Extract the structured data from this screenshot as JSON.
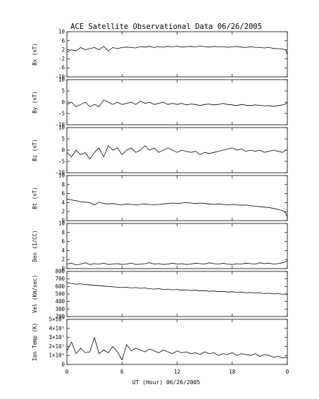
{
  "chart_data": {
    "type": "line",
    "title": "ACE Satellite Observational Data   06/26/2005",
    "xlabel": "UT (Hour)   06/26/2005",
    "x_ticks": [
      "0",
      "6",
      "12",
      "18",
      "0"
    ],
    "xlim": [
      0,
      24
    ],
    "panels": [
      {
        "key": "bx",
        "ylabel": "Bx (nT)",
        "ylim": [
          -10,
          10
        ],
        "y_ticks": [
          {
            "v": 10,
            "t": "10"
          },
          {
            "v": 6,
            "t": "6"
          },
          {
            "v": 2,
            "t": "2"
          },
          {
            "v": -2,
            "t": "-2"
          },
          {
            "v": -6,
            "t": "-6"
          },
          {
            "v": -10,
            "t": "-10"
          }
        ],
        "series": [
          {
            "x": [
              0,
              0.5,
              1,
              1.5,
              2,
              2.5,
              3,
              3.5,
              4,
              4.5,
              5,
              5.5,
              6,
              6.5,
              7,
              7.5,
              8,
              8.5,
              9,
              9.5,
              10,
              10.5,
              11,
              11.5,
              12,
              12.5,
              13,
              13.5,
              14,
              14.5,
              15,
              15.5,
              16,
              16.5,
              17,
              17.5,
              18,
              18.5,
              19,
              19.5,
              20,
              20.5,
              21,
              21.5,
              22,
              22.5,
              23,
              23.5,
              23.8,
              24
            ],
            "y": [
              1,
              2,
              1.5,
              3,
              2,
              2.5,
              3,
              2,
              3.5,
              1.5,
              3,
              2.5,
              3,
              3.2,
              3,
              2.8,
              3.4,
              3.2,
              3.5,
              3,
              3.4,
              3.1,
              3.5,
              3.3,
              3.6,
              3.2,
              3.4,
              3.5,
              3.3,
              3.6,
              3.4,
              3.2,
              3.5,
              3.3,
              3.4,
              3.1,
              3.3,
              3.5,
              3.2,
              3,
              3.3,
              3.1,
              3,
              2.8,
              3,
              2.6,
              2.5,
              2.3,
              2,
              0
            ]
          }
        ]
      },
      {
        "key": "by",
        "ylabel": "By (nT)",
        "ylim": [
          -10,
          10
        ],
        "y_ticks": [
          {
            "v": 10,
            "t": "10"
          },
          {
            "v": 5,
            "t": "5"
          },
          {
            "v": 0,
            "t": "0"
          },
          {
            "v": -5,
            "t": "-5"
          },
          {
            "v": -10,
            "t": "-10"
          }
        ],
        "series": [
          {
            "x": [
              0,
              0.5,
              1,
              1.5,
              2,
              2.5,
              3,
              3.5,
              4,
              4.5,
              5,
              5.5,
              6,
              6.5,
              7,
              7.5,
              8,
              8.5,
              9,
              9.5,
              10,
              10.5,
              11,
              11.5,
              12,
              12.5,
              13,
              13.5,
              14,
              14.5,
              15,
              15.5,
              16,
              16.5,
              17,
              17.5,
              18,
              18.5,
              19,
              19.5,
              20,
              20.5,
              21,
              21.5,
              22,
              22.5,
              23,
              23.5,
              23.8,
              24
            ],
            "y": [
              -1,
              0,
              -2,
              -1,
              0,
              -2,
              -1,
              -2,
              1,
              0,
              -1,
              0,
              -1,
              -0.5,
              0,
              -1,
              0.5,
              -0.5,
              0,
              -1,
              -0.5,
              0,
              -1,
              -0.5,
              -1,
              -0.5,
              -1.2,
              -0.8,
              -1,
              -1.5,
              -1,
              -0.8,
              -1.2,
              -1,
              -0.5,
              -1,
              -1.2,
              -1.5,
              -1,
              -1.3,
              -1.5,
              -1.2,
              -1.4,
              -1.6,
              -1.5,
              -1.8,
              -1.5,
              -1.2,
              -0.8,
              -0.2
            ]
          }
        ]
      },
      {
        "key": "bz",
        "ylabel": "Bz (nT)",
        "ylim": [
          -10,
          10
        ],
        "y_ticks": [
          {
            "v": 10,
            "t": "10"
          },
          {
            "v": 5,
            "t": "5"
          },
          {
            "v": 0,
            "t": "0"
          },
          {
            "v": -5,
            "t": "-5"
          },
          {
            "v": -10,
            "t": "-10"
          }
        ],
        "series": [
          {
            "x": [
              0,
              0.5,
              1,
              1.5,
              2,
              2.5,
              3,
              3.5,
              4,
              4.5,
              5,
              5.5,
              6,
              6.5,
              7,
              7.5,
              8,
              8.5,
              9,
              9.5,
              10,
              10.5,
              11,
              11.5,
              12,
              12.5,
              13,
              13.5,
              14,
              14.5,
              15,
              15.5,
              16,
              16.5,
              17,
              17.5,
              18,
              18.5,
              19,
              19.5,
              20,
              20.5,
              21,
              21.5,
              22,
              22.5,
              23,
              23.5,
              23.8,
              24
            ],
            "y": [
              -1,
              -3,
              0,
              -2,
              -1,
              -4,
              -1,
              1,
              -3,
              2,
              0,
              1,
              -2,
              0,
              1,
              -1,
              0,
              2,
              0,
              1,
              -1,
              0,
              1,
              0,
              -1,
              0,
              -0.5,
              -1,
              -0.5,
              -2,
              -1,
              -1.5,
              -1,
              -0.5,
              0,
              0.5,
              1,
              0,
              0.5,
              -0.5,
              0,
              -0.5,
              0,
              -1,
              -0.5,
              0,
              -0.5,
              -1,
              0,
              0
            ]
          }
        ]
      },
      {
        "key": "bt",
        "ylabel": "Bt (nT)",
        "ylim": [
          0,
          10
        ],
        "y_ticks": [
          {
            "v": 10,
            "t": "10"
          },
          {
            "v": 8,
            "t": "8"
          },
          {
            "v": 6,
            "t": "6"
          },
          {
            "v": 4,
            "t": "4"
          },
          {
            "v": 2,
            "t": "2"
          },
          {
            "v": 0,
            "t": "0"
          }
        ],
        "series": [
          {
            "x": [
              0,
              0.5,
              1,
              1.5,
              2,
              2.5,
              3,
              3.5,
              4,
              4.5,
              5,
              5.5,
              6,
              6.5,
              7,
              7.5,
              8,
              8.5,
              9,
              9.5,
              10,
              10.5,
              11,
              11.5,
              12,
              12.5,
              13,
              13.5,
              14,
              14.5,
              15,
              15.5,
              16,
              16.5,
              17,
              17.5,
              18,
              18.5,
              19,
              19.5,
              20,
              20.5,
              21,
              21.5,
              22,
              22.5,
              23,
              23.5,
              23.8,
              24
            ],
            "y": [
              4.8,
              4.6,
              4.4,
              4.2,
              4.1,
              4,
              3.5,
              4.1,
              3.8,
              3.7,
              3.8,
              3.6,
              3.5,
              3.7,
              3.6,
              3.5,
              3.6,
              3.7,
              3.6,
              3.5,
              3.6,
              3.7,
              3.8,
              3.9,
              3.8,
              3.9,
              4,
              3.9,
              3.8,
              3.9,
              3.8,
              3.7,
              3.6,
              3.7,
              3.6,
              3.5,
              3.6,
              3.5,
              3.4,
              3.5,
              3.3,
              3.2,
              3.1,
              3,
              2.9,
              2.7,
              2.5,
              2.2,
              1.8,
              0.8
            ]
          }
        ]
      },
      {
        "key": "den",
        "ylabel": "Den (1/CC)",
        "ylim": [
          0,
          10
        ],
        "y_ticks": [
          {
            "v": 10,
            "t": "10"
          },
          {
            "v": 8,
            "t": "8"
          },
          {
            "v": 6,
            "t": "6"
          },
          {
            "v": 4,
            "t": "4"
          },
          {
            "v": 2,
            "t": "2"
          },
          {
            "v": 0,
            "t": "0"
          }
        ],
        "series": [
          {
            "x": [
              0,
              0.5,
              1,
              1.5,
              2,
              2.5,
              3,
              3.5,
              4,
              4.5,
              5,
              5.5,
              6,
              6.5,
              7,
              7.5,
              8,
              8.5,
              9,
              9.5,
              10,
              10.5,
              11,
              11.5,
              12,
              12.5,
              13,
              13.5,
              14,
              14.5,
              15,
              15.5,
              16,
              16.5,
              17,
              17.5,
              18,
              18.5,
              19,
              19.5,
              20,
              20.5,
              21,
              21.5,
              22,
              22.5,
              23,
              23.5,
              23.8,
              24
            ],
            "y": [
              1,
              1.2,
              0.8,
              1,
              1.3,
              0.9,
              1.1,
              1,
              1.2,
              0.9,
              1,
              1.1,
              0.9,
              1,
              1.2,
              0.9,
              1,
              1.1,
              1.3,
              1,
              1.1,
              0.9,
              1,
              1.2,
              1,
              1.1,
              0.9,
              1,
              1.2,
              1.1,
              1,
              1.3,
              1.1,
              1,
              1.2,
              1,
              0.9,
              1.1,
              1,
              1.2,
              1.1,
              1,
              1.3,
              1.1,
              1.2,
              1,
              1.1,
              1.3,
              1.5,
              1.8
            ]
          }
        ]
      },
      {
        "key": "vel",
        "ylabel": "Vel (Km/sec)",
        "ylim": [
          200,
          800
        ],
        "y_ticks": [
          {
            "v": 800,
            "t": "800"
          },
          {
            "v": 700,
            "t": "700"
          },
          {
            "v": 600,
            "t": "600"
          },
          {
            "v": 500,
            "t": "500"
          },
          {
            "v": 400,
            "t": "400"
          },
          {
            "v": 300,
            "t": "300"
          },
          {
            "v": 200,
            "t": "200"
          }
        ],
        "series": [
          {
            "x": [
              0,
              0.5,
              1,
              1.5,
              2,
              2.5,
              3,
              3.5,
              4,
              4.5,
              5,
              5.5,
              6,
              6.5,
              7,
              7.5,
              8,
              8.5,
              9,
              9.5,
              10,
              10.5,
              11,
              11.5,
              12,
              12.5,
              13,
              13.5,
              14,
              14.5,
              15,
              15.5,
              16,
              16.5,
              17,
              17.5,
              18,
              18.5,
              19,
              19.5,
              20,
              20.5,
              21,
              21.5,
              22,
              22.5,
              23,
              23.5,
              23.8,
              24
            ],
            "y": [
              650,
              640,
              630,
              635,
              625,
              620,
              615,
              610,
              605,
              600,
              595,
              590,
              585,
              590,
              580,
              585,
              575,
              580,
              570,
              565,
              570,
              560,
              565,
              555,
              560,
              550,
              555,
              545,
              550,
              540,
              545,
              535,
              540,
              530,
              535,
              525,
              530,
              520,
              525,
              515,
              520,
              510,
              515,
              505,
              510,
              500,
              505,
              495,
              500,
              490
            ]
          }
        ]
      },
      {
        "key": "temp",
        "ylabel": "Ion Temp (K)",
        "ylim": [
          0,
          500000
        ],
        "y_ticks": [
          {
            "v": 500000,
            "t": "5×10⁵"
          },
          {
            "v": 400000,
            "t": "4×10⁵"
          },
          {
            "v": 300000,
            "t": "3×10⁵"
          },
          {
            "v": 200000,
            "t": "2×10⁵"
          },
          {
            "v": 100000,
            "t": "1×10⁵"
          },
          {
            "v": 0,
            "t": "0"
          }
        ],
        "series": [
          {
            "x": [
              0,
              0.5,
              1,
              1.5,
              2,
              2.5,
              3,
              3.5,
              4,
              4.5,
              5,
              5.5,
              6,
              6.5,
              7,
              7.5,
              8,
              8.5,
              9,
              9.5,
              10,
              10.5,
              11,
              11.5,
              12,
              12.5,
              13,
              13.5,
              14,
              14.5,
              15,
              15.5,
              16,
              16.5,
              17,
              17.5,
              18,
              18.5,
              19,
              19.5,
              20,
              20.5,
              21,
              21.5,
              22,
              22.5,
              23,
              23.5,
              23.8,
              24
            ],
            "y": [
              150000,
              250000,
              120000,
              180000,
              130000,
              140000,
              300000,
              120000,
              160000,
              130000,
              200000,
              140000,
              50000,
              220000,
              150000,
              180000,
              160000,
              140000,
              170000,
              150000,
              130000,
              160000,
              140000,
              120000,
              150000,
              130000,
              140000,
              120000,
              130000,
              110000,
              140000,
              120000,
              130000,
              100000,
              120000,
              110000,
              130000,
              100000,
              120000,
              110000,
              100000,
              120000,
              90000,
              110000,
              100000,
              80000,
              90000,
              70000,
              80000,
              70000
            ]
          }
        ]
      }
    ]
  }
}
